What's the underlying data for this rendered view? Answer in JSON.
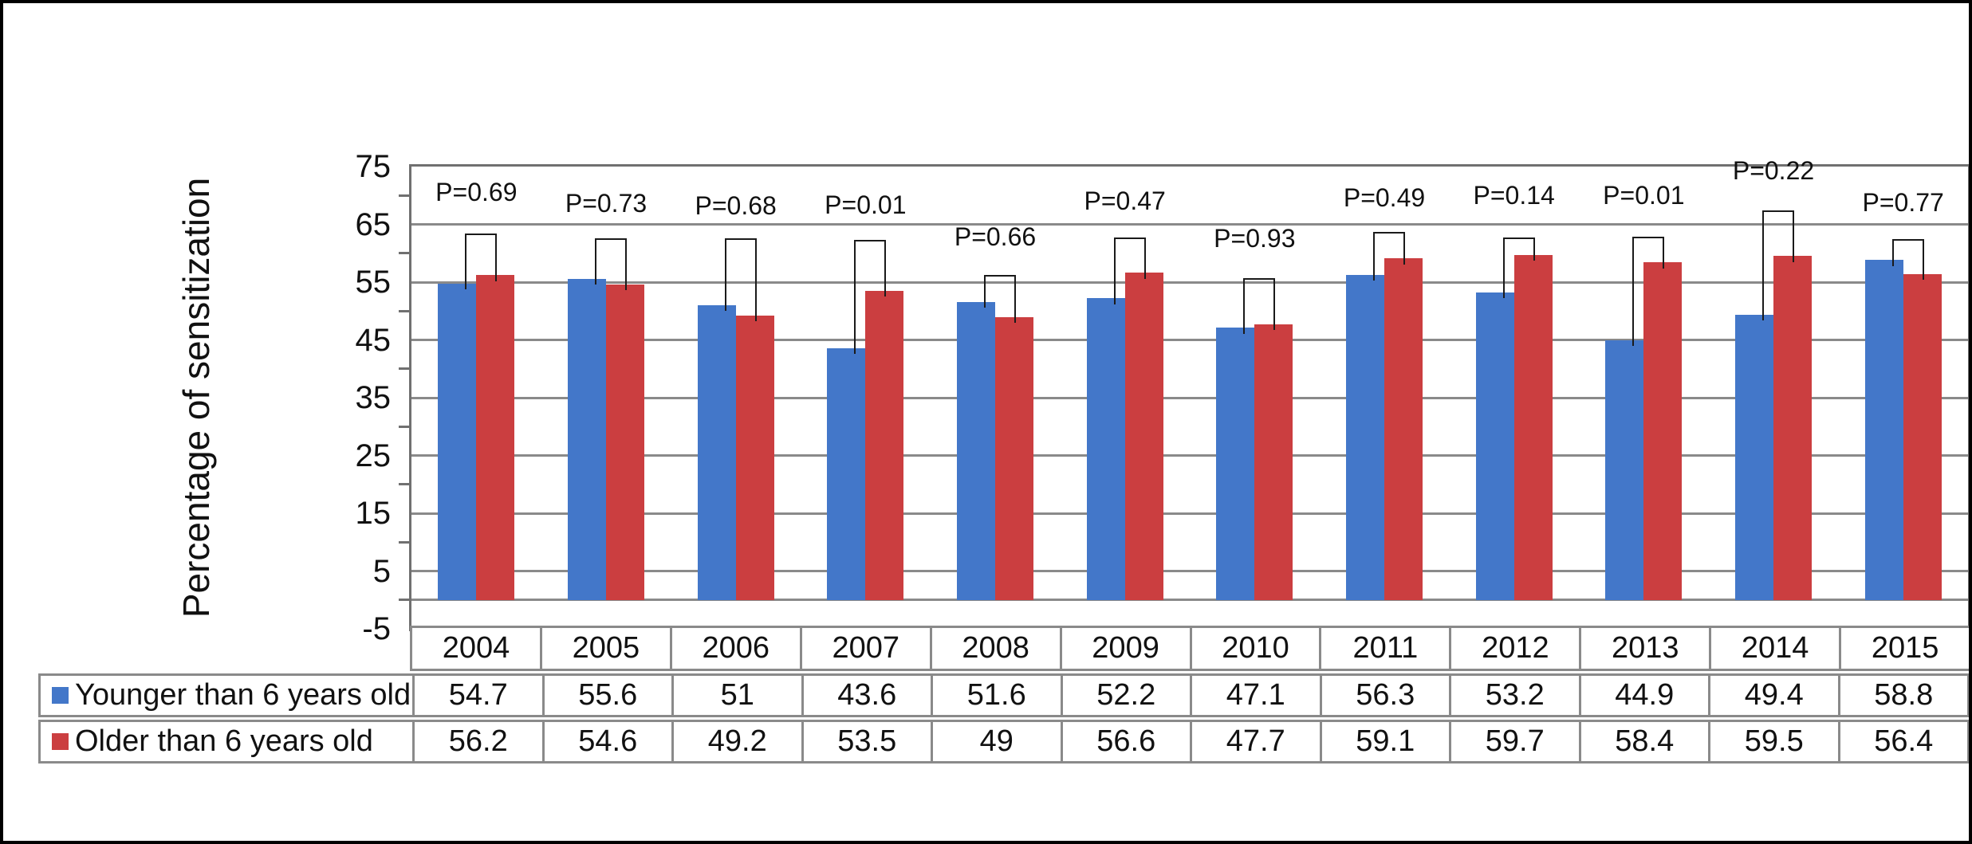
{
  "chart_data": {
    "type": "bar",
    "title": "",
    "xlabel": "",
    "ylabel": "Percentage of sensitization",
    "ylim": [
      -5,
      75
    ],
    "y_ticks": [
      75,
      65,
      55,
      45,
      35,
      25,
      15,
      5,
      -5
    ],
    "minor_ticks": [
      70,
      60,
      50,
      40,
      30,
      20,
      10,
      0
    ],
    "grid": true,
    "legend_position": "table-left-column",
    "categories": [
      "2004",
      "2005",
      "2006",
      "2007",
      "2008",
      "2009",
      "2010",
      "2011",
      "2012",
      "2013",
      "2014",
      "2015"
    ],
    "series": [
      {
        "name": "Younger than 6 years old",
        "color": "#4377C9",
        "values": [
          54.7,
          55.6,
          51,
          43.6,
          51.6,
          52.2,
          47.1,
          56.3,
          53.2,
          44.9,
          49.4,
          58.8
        ],
        "display": [
          "54.7",
          "55.6",
          "51",
          "43.6",
          "51.6",
          "52.2",
          "47.1",
          "56.3",
          "53.2",
          "44.9",
          "49.4",
          "58.8"
        ]
      },
      {
        "name": "Older than 6 years old",
        "color": "#CB3E40",
        "values": [
          56.2,
          54.6,
          49.2,
          53.5,
          49,
          56.6,
          47.7,
          59.1,
          59.7,
          58.4,
          59.5,
          56.4
        ],
        "display": [
          "56.2",
          "54.6",
          "49.2",
          "53.5",
          "49",
          "56.6",
          "47.7",
          "59.1",
          "59.7",
          "58.4",
          "59.5",
          "56.4"
        ]
      }
    ],
    "annotations": [
      {
        "label": "P=0.69",
        "bracket_y": 63.3,
        "text_y": 70.6
      },
      {
        "label": "P=0.73",
        "bracket_y": 62.4,
        "text_y": 68.6
      },
      {
        "label": "P=0.68",
        "bracket_y": 62.4,
        "text_y": 68.3
      },
      {
        "label": "P=0.01",
        "bracket_y": 62.2,
        "text_y": 68.4
      },
      {
        "label": "P=0.66",
        "bracket_y": 56.1,
        "text_y": 62.8
      },
      {
        "label": "P=0.47",
        "bracket_y": 62.6,
        "text_y": 69.1
      },
      {
        "label": "P=0.93",
        "bracket_y": 55.6,
        "text_y": 62.6
      },
      {
        "label": "P=0.49",
        "bracket_y": 63.6,
        "text_y": 69.6
      },
      {
        "label": "P=0.14",
        "bracket_y": 62.6,
        "text_y": 70.0
      },
      {
        "label": "P=0.01",
        "bracket_y": 62.7,
        "text_y": 70.0
      },
      {
        "label": "P=0.22",
        "bracket_y": 67.3,
        "text_y": 74.3
      },
      {
        "label": "P=0.77",
        "bracket_y": 62.3,
        "text_y": 68.8
      }
    ],
    "colors": {
      "grid": "#8a8a8a",
      "plot_border": "#707070",
      "bracket": "#1a1a1a",
      "table_border": "#8a8a8a",
      "text": "#111111",
      "figure_border": "#000000",
      "background": "#ffffff"
    }
  }
}
